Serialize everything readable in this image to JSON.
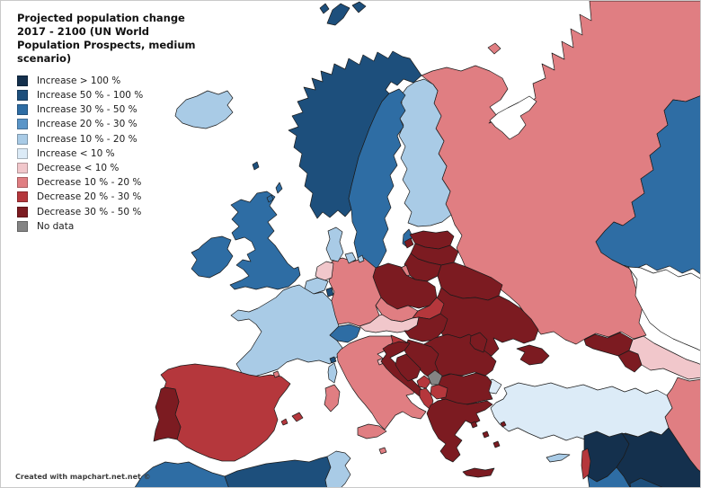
{
  "title": "Projected population change\n2017 - 2100 (UN World\nPopulation Prospects, medium\nscenario)",
  "footer": {
    "credit": "Created with mapchart.net.net ©"
  },
  "legend": {
    "items": [
      {
        "id": "increase_gt_100",
        "label": "Increase > 100 %",
        "color": "#14304d"
      },
      {
        "id": "increase_50_100",
        "label": "Increase 50 % - 100 %",
        "color": "#1d4f7c"
      },
      {
        "id": "increase_30_50",
        "label": "Increase 30 % - 50 %",
        "color": "#2e6da4"
      },
      {
        "id": "increase_20_30",
        "label": "Increase 20 % - 30 %",
        "color": "#5a95c8"
      },
      {
        "id": "increase_10_20",
        "label": "Increase 10 % - 20 %",
        "color": "#a9cbe6"
      },
      {
        "id": "increase_lt_10",
        "label": "Increase < 10 %",
        "color": "#dcebf7"
      },
      {
        "id": "decrease_lt_10",
        "label": "Decrease < 10 %",
        "color": "#f1c7cb"
      },
      {
        "id": "decrease_10_20",
        "label": "Decrease 10 % - 20 %",
        "color": "#e07e82"
      },
      {
        "id": "decrease_20_30",
        "label": "Decrease 20 % - 30 %",
        "color": "#b5373c"
      },
      {
        "id": "decrease_30_50",
        "label": "Decrease 30 % - 50 %",
        "color": "#7c1b21"
      },
      {
        "id": "no_data",
        "label": "No data",
        "color": "#848484"
      }
    ]
  },
  "map": {
    "sea_color": "#ffffff",
    "border_color": "#1b1b1b",
    "countries": [
      {
        "id": "russia",
        "category": "decrease_10_20"
      },
      {
        "id": "kazakhstan",
        "category": "increase_30_50"
      },
      {
        "id": "iran",
        "category": "decrease_10_20"
      },
      {
        "id": "turkey",
        "category": "increase_lt_10"
      },
      {
        "id": "syria",
        "category": "increase_gt_100"
      },
      {
        "id": "iraq",
        "category": "increase_gt_100"
      },
      {
        "id": "jordan",
        "category": "increase_30_50"
      },
      {
        "id": "saudi_arabia",
        "category": "increase_50_100"
      },
      {
        "id": "lebanon",
        "category": "decrease_20_30"
      },
      {
        "id": "georgia",
        "category": "decrease_30_50"
      },
      {
        "id": "armenia",
        "category": "decrease_30_50"
      },
      {
        "id": "azerbaijan",
        "category": "decrease_lt_10"
      },
      {
        "id": "finland",
        "category": "increase_10_20"
      },
      {
        "id": "norway",
        "category": "increase_50_100"
      },
      {
        "id": "sweden",
        "category": "increase_30_50"
      },
      {
        "id": "denmark",
        "category": "increase_10_20"
      },
      {
        "id": "iceland",
        "category": "increase_10_20"
      },
      {
        "id": "faroe_islands",
        "category": "increase_50_100"
      },
      {
        "id": "united_kingdom",
        "category": "increase_30_50"
      },
      {
        "id": "ireland",
        "category": "increase_30_50"
      },
      {
        "id": "estonia",
        "category": "decrease_30_50"
      },
      {
        "id": "latvia",
        "category": "decrease_30_50"
      },
      {
        "id": "lithuania",
        "category": "decrease_30_50"
      },
      {
        "id": "belarus",
        "category": "decrease_30_50"
      },
      {
        "id": "ukraine",
        "category": "decrease_30_50"
      },
      {
        "id": "moldova",
        "category": "decrease_30_50"
      },
      {
        "id": "poland",
        "category": "decrease_30_50"
      },
      {
        "id": "germany",
        "category": "decrease_10_20"
      },
      {
        "id": "czechia",
        "category": "decrease_10_20"
      },
      {
        "id": "slovakia",
        "category": "decrease_20_30"
      },
      {
        "id": "austria",
        "category": "decrease_lt_10"
      },
      {
        "id": "hungary",
        "category": "decrease_30_50"
      },
      {
        "id": "switzerland",
        "category": "increase_30_50"
      },
      {
        "id": "netherlands",
        "category": "decrease_lt_10"
      },
      {
        "id": "belgium",
        "category": "increase_10_20"
      },
      {
        "id": "luxembourg",
        "category": "increase_50_100"
      },
      {
        "id": "france",
        "category": "increase_10_20"
      },
      {
        "id": "monaco",
        "category": "increase_50_100"
      },
      {
        "id": "italy",
        "category": "decrease_10_20"
      },
      {
        "id": "san_marino",
        "category": "decrease_lt_10"
      },
      {
        "id": "malta",
        "category": "decrease_10_20"
      },
      {
        "id": "slovenia",
        "category": "decrease_20_30"
      },
      {
        "id": "croatia",
        "category": "decrease_30_50"
      },
      {
        "id": "bosnia_herzegovina",
        "category": "decrease_30_50"
      },
      {
        "id": "serbia",
        "category": "decrease_30_50"
      },
      {
        "id": "montenegro",
        "category": "decrease_20_30"
      },
      {
        "id": "kosovo",
        "category": "no_data"
      },
      {
        "id": "north_macedonia",
        "category": "decrease_20_30"
      },
      {
        "id": "albania",
        "category": "decrease_20_30"
      },
      {
        "id": "greece",
        "category": "decrease_30_50"
      },
      {
        "id": "bulgaria",
        "category": "decrease_30_50"
      },
      {
        "id": "romania",
        "category": "decrease_30_50"
      },
      {
        "id": "spain",
        "category": "decrease_20_30"
      },
      {
        "id": "portugal",
        "category": "decrease_30_50"
      },
      {
        "id": "andorra",
        "category": "decrease_10_20"
      },
      {
        "id": "morocco",
        "category": "increase_30_50"
      },
      {
        "id": "algeria",
        "category": "increase_50_100"
      },
      {
        "id": "tunisia",
        "category": "increase_10_20"
      },
      {
        "id": "cyprus",
        "category": "increase_10_20"
      }
    ]
  }
}
